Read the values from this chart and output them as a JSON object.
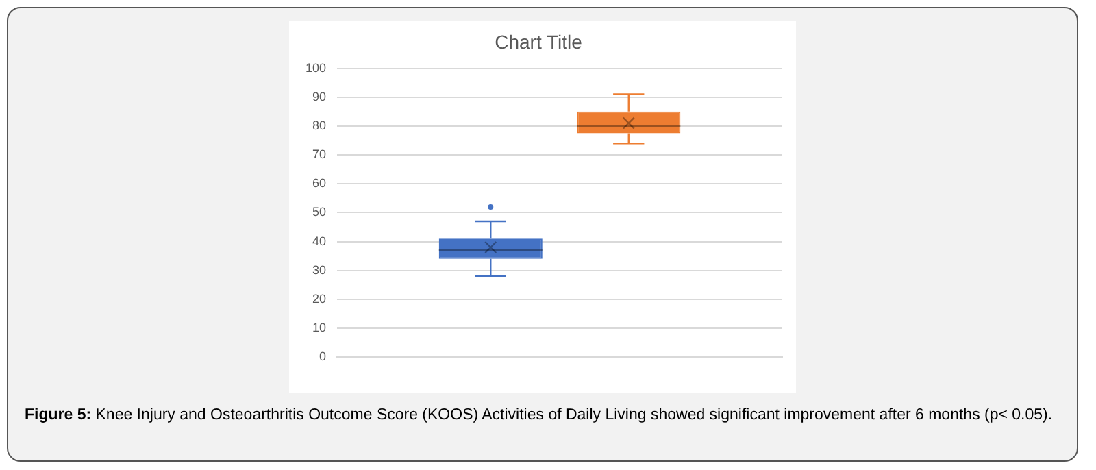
{
  "chart_data": {
    "type": "box",
    "title": "Chart Title",
    "categories": [
      null
    ],
    "series": [
      {
        "color": "#4472c4",
        "boxes": [
          {
            "low": 28,
            "q1": 34,
            "median": 37,
            "q3": 41,
            "high": 47,
            "mean": 38,
            "outliers": [
              52
            ]
          }
        ]
      },
      {
        "color": "#ed7d31",
        "boxes": [
          {
            "low": 74,
            "q1": 77.5,
            "median": 80,
            "q3": 85,
            "high": 91,
            "mean": 81
          }
        ]
      }
    ],
    "ylim": [
      0,
      100
    ],
    "yticks": [
      0,
      10,
      20,
      30,
      40,
      50,
      60,
      70,
      80,
      90,
      100
    ],
    "grid": "y",
    "legend": false,
    "annotations": [
      "Figure 5: Knee Injury and Osteoarthritis Outcome Score (KOOS) Activities of Daily Living showed significant improvement after 6 months (p< 0.05)."
    ]
  }
}
